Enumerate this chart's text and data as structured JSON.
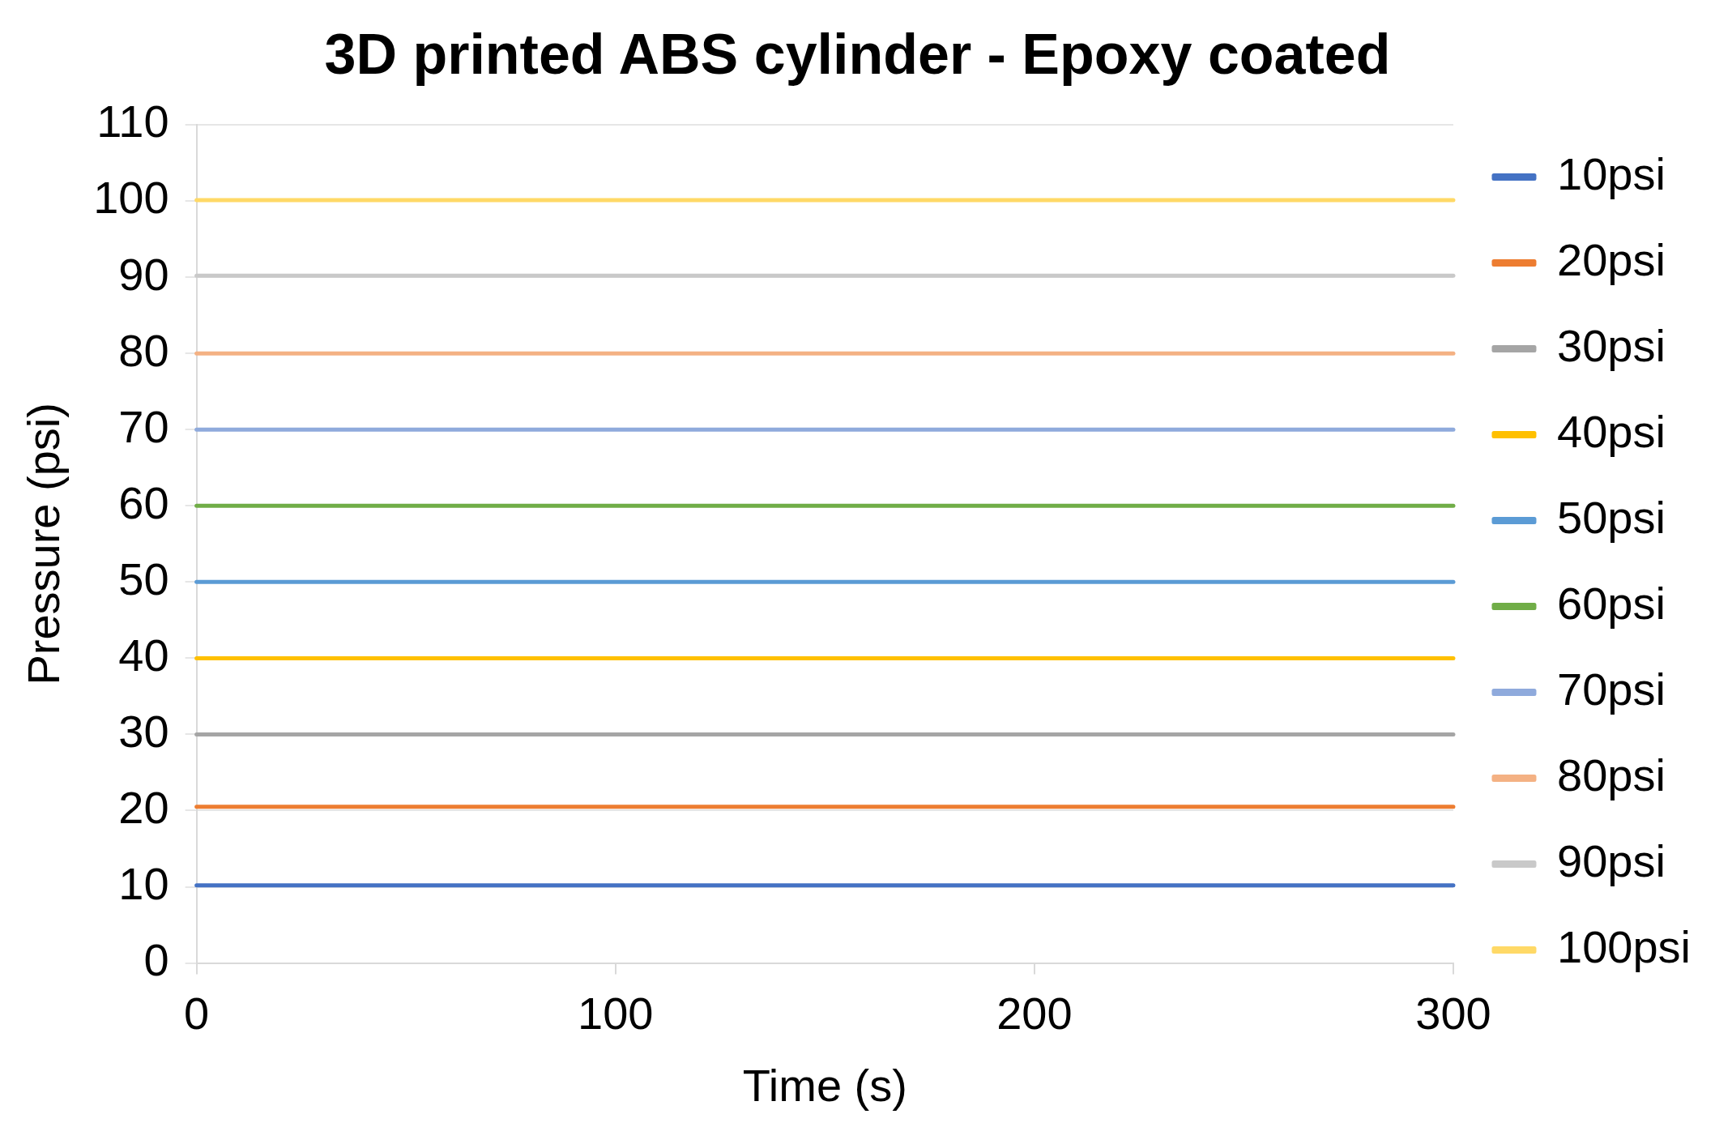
{
  "chart_data": {
    "type": "line",
    "title": "3D printed ABS cylinder - Epoxy coated",
    "xlabel": "Time (s)",
    "ylabel": "Pressure (psi)",
    "x": [
      0,
      300
    ],
    "series": [
      {
        "name": "10psi",
        "color": "#4472c4",
        "values": [
          10.2,
          10.2
        ]
      },
      {
        "name": "20psi",
        "color": "#ed7d31",
        "values": [
          20.5,
          20.5
        ]
      },
      {
        "name": "30psi",
        "color": "#a5a5a5",
        "values": [
          30,
          30
        ]
      },
      {
        "name": "40psi",
        "color": "#ffc000",
        "values": [
          40,
          40
        ]
      },
      {
        "name": "50psi",
        "color": "#5b9bd5",
        "values": [
          50,
          50
        ]
      },
      {
        "name": "60psi",
        "color": "#70ad47",
        "values": [
          60,
          60
        ]
      },
      {
        "name": "70psi",
        "color": "#8faadc",
        "values": [
          70,
          70
        ]
      },
      {
        "name": "80psi",
        "color": "#f4b183",
        "values": [
          80,
          80
        ]
      },
      {
        "name": "90psi",
        "color": "#c9c9c9",
        "values": [
          90.2,
          90.2
        ]
      },
      {
        "name": "100psi",
        "color": "#ffd966",
        "values": [
          100.1,
          100.1
        ]
      }
    ],
    "xlim": [
      0,
      300
    ],
    "xticks": [
      0,
      100,
      200,
      300
    ],
    "ylim": [
      0,
      110
    ],
    "yticks": [
      0,
      10,
      20,
      30,
      40,
      50,
      60,
      70,
      80,
      90,
      100,
      110
    ],
    "grid": "y",
    "legend": "right",
    "marker": "none",
    "line_style": "solid"
  }
}
